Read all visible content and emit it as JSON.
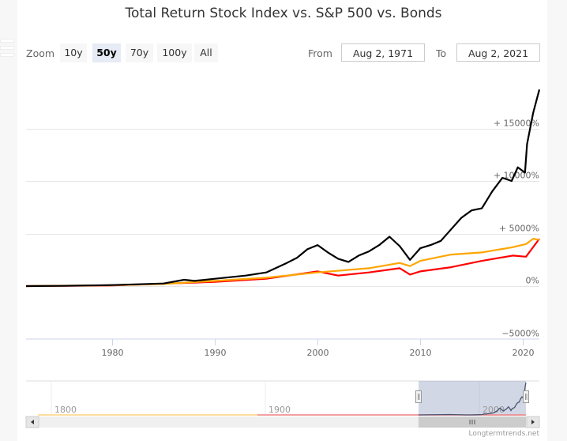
{
  "title": "Total Return Stock Index vs. S&P 500 vs. Bonds",
  "range_selector": {
    "zoom_label": "Zoom",
    "buttons": [
      "10y",
      "50y",
      "70y",
      "100y",
      "All"
    ],
    "selected": "50y",
    "from_label": "From",
    "from_value": "Aug 2, 1971",
    "to_label": "To",
    "to_value": "Aug 2, 2021"
  },
  "credit": "Longtermtrends.net",
  "navigator": {
    "tick_labels": [
      "1800",
      "1900",
      "2000"
    ]
  },
  "chart_data": {
    "type": "line",
    "title": "Total Return Stock Index vs. S&P 500 vs. Bonds",
    "xlabel": "",
    "ylabel": "",
    "xlim": [
      1971.6,
      2021.6
    ],
    "ylim": [
      -6000,
      20000
    ],
    "x_ticks": [
      1980,
      1990,
      2000,
      2010,
      2020
    ],
    "y_ticks": [
      -5000,
      0,
      5000,
      10000,
      15000
    ],
    "y_tick_labels": [
      "−5000%",
      "0%",
      "+ 5000%",
      "+ 10000%",
      "+ 15000%"
    ],
    "grid": true,
    "series": [
      {
        "name": "Total Return Stock Index",
        "color": "#000000",
        "x": [
          1971.6,
          1975,
          1980,
          1985,
          1987,
          1988,
          1990,
          1993,
          1995,
          1997,
          1998,
          1999,
          2000,
          2001,
          2002,
          2003,
          2004,
          2005,
          2006,
          2007,
          2008,
          2009,
          2010,
          2011,
          2012,
          2013,
          2014,
          2015,
          2016,
          2017,
          2018,
          2018.9,
          2019.5,
          2020.2,
          2020.4,
          2021,
          2021.6
        ],
        "y": [
          0,
          20,
          100,
          250,
          600,
          500,
          700,
          1000,
          1300,
          2200,
          2700,
          3500,
          3900,
          3200,
          2600,
          2300,
          2900,
          3300,
          3900,
          4700,
          3800,
          2500,
          3600,
          3900,
          4300,
          5400,
          6500,
          7200,
          7400,
          9000,
          10300,
          10000,
          11300,
          10800,
          13500,
          16500,
          18700
        ]
      },
      {
        "name": "S&P 500",
        "color": "#ffa500",
        "x": [
          1971.6,
          1980,
          1985,
          1990,
          1995,
          2000,
          2005,
          2008,
          2009,
          2010,
          2013,
          2016,
          2019,
          2020.3,
          2021,
          2021.6
        ],
        "y": [
          0,
          80,
          200,
          500,
          800,
          1300,
          1700,
          2200,
          1900,
          2400,
          3000,
          3200,
          3700,
          4000,
          4500,
          4400
        ]
      },
      {
        "name": "Bonds",
        "color": "#ff0000",
        "x": [
          1971.6,
          1980,
          1990,
          1995,
          2000,
          2002,
          2005,
          2008,
          2009,
          2010,
          2013,
          2016,
          2019,
          2020.3,
          2021.6
        ],
        "y": [
          0,
          60,
          400,
          700,
          1400,
          1000,
          1300,
          1700,
          1100,
          1400,
          1800,
          2400,
          2900,
          2800,
          4500
        ]
      }
    ]
  }
}
